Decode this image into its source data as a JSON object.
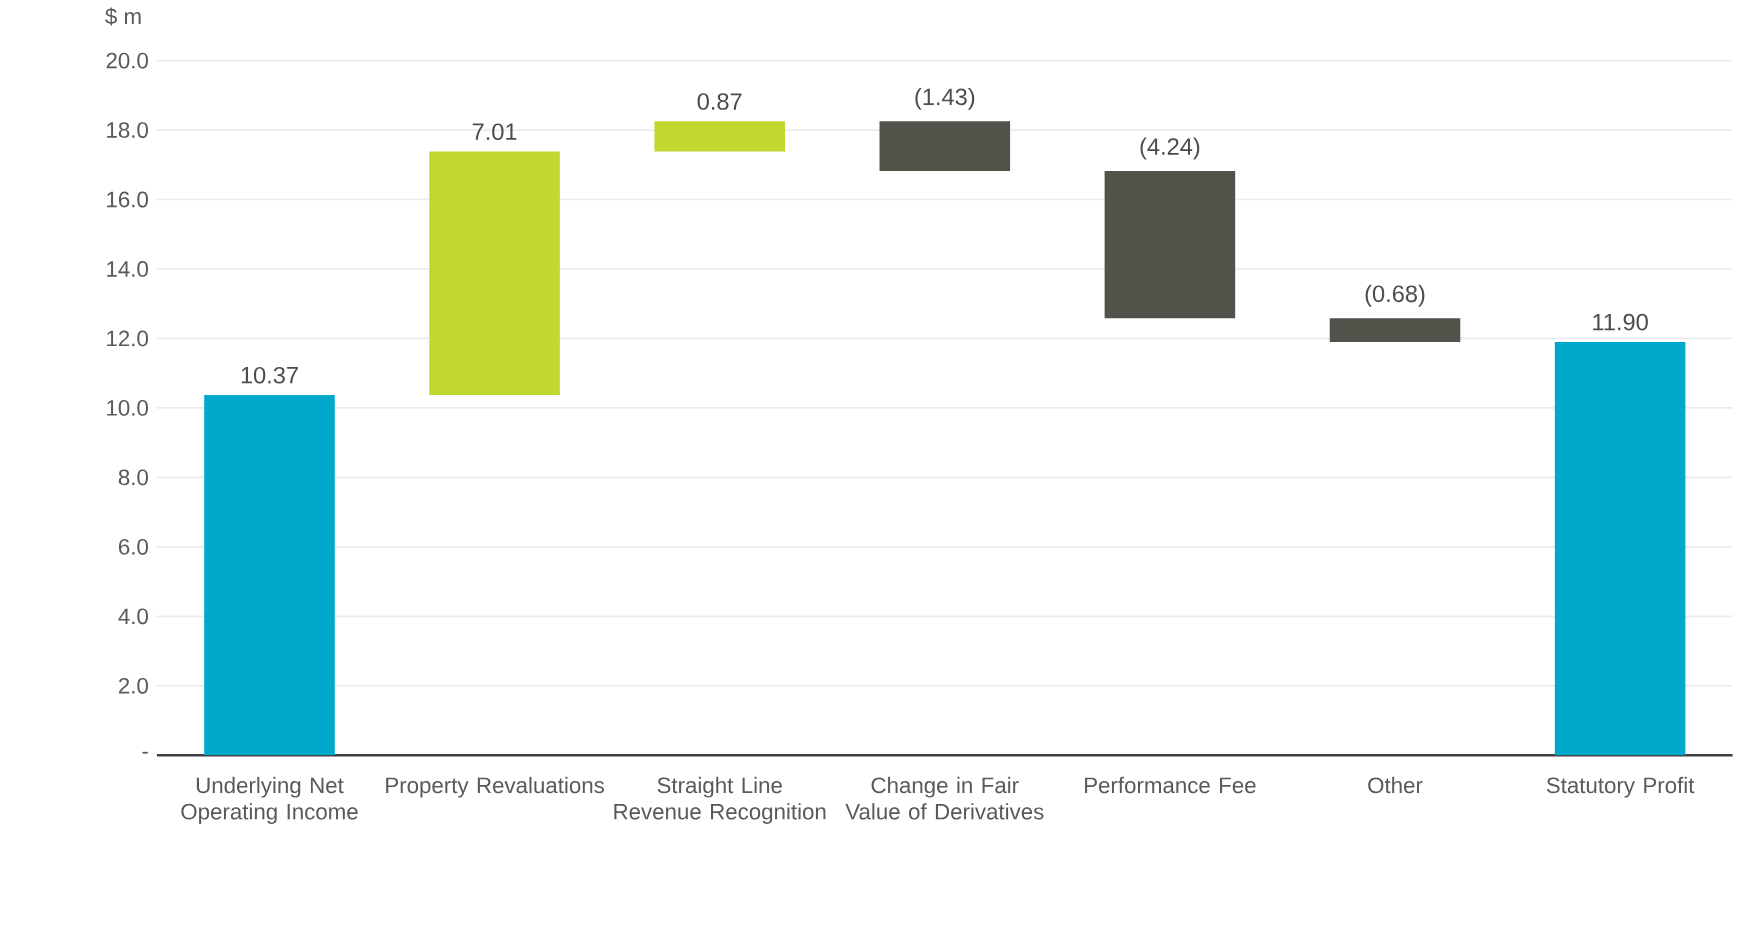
{
  "chart_data": {
    "type": "bar",
    "ylabel": "$ m",
    "categories": [
      "Underlying Net Operating Income",
      "Property Revaluations",
      "Straight Line Revenue Recognition",
      "Change in Fair Value of Derivatives",
      "Performance Fee",
      "Other",
      "Statutory Profit"
    ],
    "values": [
      10.37,
      7.01,
      0.87,
      -1.43,
      -4.24,
      -0.68,
      11.9
    ],
    "base": [
      0,
      10.37,
      17.38,
      18.25,
      16.82,
      12.58,
      0
    ],
    "colors": [
      "#00a8cc",
      "#c1d82f",
      "#c1d82f",
      "#52524a",
      "#52524a",
      "#52524a",
      "#00a8cc"
    ],
    "value_labels": [
      "10.37",
      "7.01",
      "0.87",
      "(1.43)",
      "(4.24)",
      "(0.68)",
      "11.90"
    ],
    "ylim": [
      0,
      20
    ],
    "yticks": [
      {
        "value": 0,
        "label": "-"
      },
      {
        "value": 2,
        "label": "2.0"
      },
      {
        "value": 4,
        "label": "4.0"
      },
      {
        "value": 6,
        "label": "6.0"
      },
      {
        "value": 8,
        "label": "8.0"
      },
      {
        "value": 10,
        "label": "10.0"
      },
      {
        "value": 12,
        "label": "12.0"
      },
      {
        "value": 14,
        "label": "14.0"
      },
      {
        "value": 16,
        "label": "16.0"
      },
      {
        "value": 18,
        "label": "18.0"
      },
      {
        "value": 20,
        "label": "20.0"
      }
    ],
    "grid": "y"
  }
}
